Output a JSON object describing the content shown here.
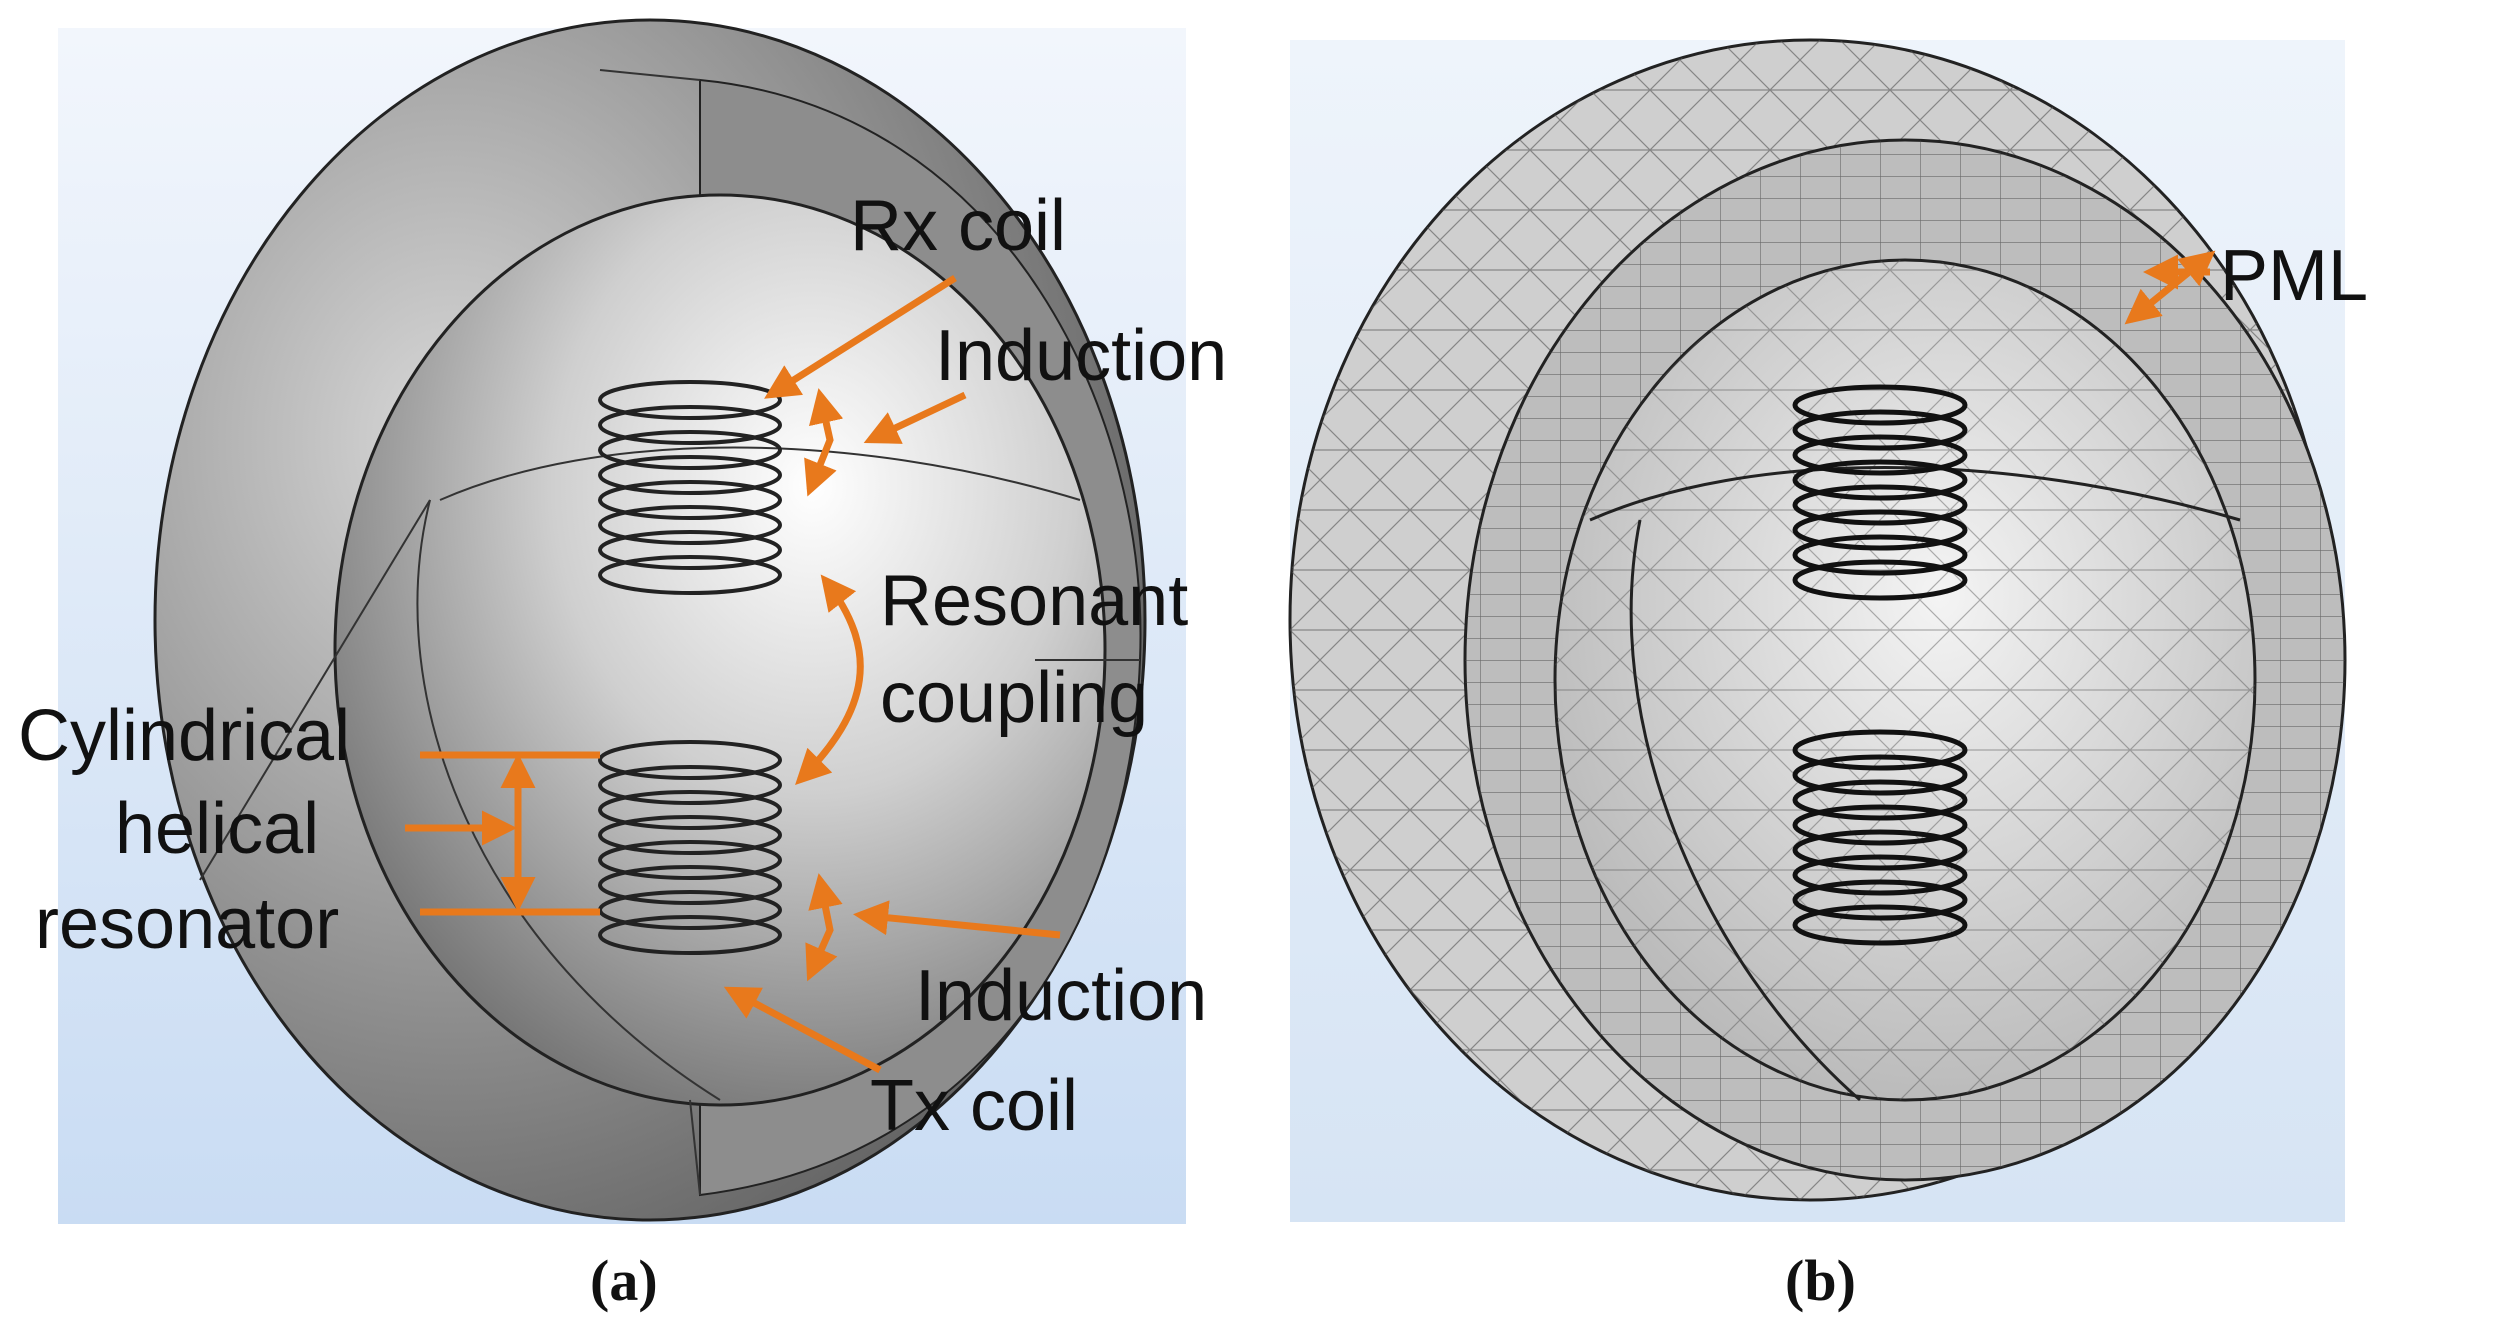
{
  "panel_a": {
    "caption": "(a)",
    "labels": {
      "rx_coil": "Rx coil",
      "induction_top": "Induction",
      "resonant_line1": "Resonant",
      "resonant_line2": "coupling",
      "cyl_line1": "Cylindrical",
      "cyl_line2": "helical",
      "cyl_line3": "resonator",
      "induction_bottom": "Induction",
      "tx_coil": "Tx coil"
    }
  },
  "panel_b": {
    "caption": "(b)",
    "labels": {
      "pml": "PML"
    }
  },
  "colors": {
    "accent": "#E8791C",
    "background": "#dde9f7"
  }
}
